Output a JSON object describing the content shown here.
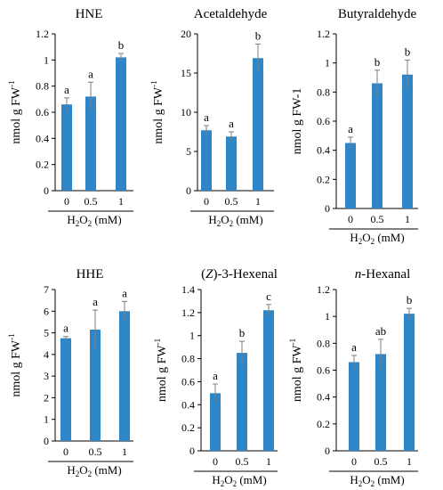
{
  "chart_data": [
    {
      "type": "bar",
      "title": "HNE",
      "ylabel": "nmol g FW",
      "ylabel_sup": "-1",
      "xlabel_parts": [
        "H",
        "2",
        "O",
        "2",
        " (mM)"
      ],
      "categories": [
        "0",
        "0.5",
        "1"
      ],
      "values": [
        0.66,
        0.72,
        1.02
      ],
      "errors": [
        0.05,
        0.11,
        0.03
      ],
      "letters": [
        "a",
        "a",
        "b"
      ],
      "ylim": [
        0,
        1.2
      ],
      "yticks": [
        "0",
        "0.2",
        "0.4",
        "0.6",
        "0.8",
        "1",
        "1.2"
      ]
    },
    {
      "type": "bar",
      "title": "Acetaldehyde",
      "ylabel": "nmol g FW",
      "ylabel_sup": "-1",
      "xlabel_parts": [
        "H",
        "2",
        "O",
        "2",
        " (mM)"
      ],
      "categories": [
        "0",
        "0.5",
        "1"
      ],
      "values": [
        7.7,
        6.9,
        16.9
      ],
      "errors": [
        0.6,
        0.6,
        1.8
      ],
      "letters": [
        "a",
        "a",
        "b"
      ],
      "ylim": [
        0,
        20
      ],
      "yticks": [
        "0",
        "5",
        "10",
        "15",
        "20"
      ]
    },
    {
      "type": "bar",
      "title": "Butyraldehyde",
      "ylabel": "nmol g FW-1",
      "ylabel_sup": "",
      "xlabel_parts": [
        "H",
        "2",
        "O",
        "2",
        " (mM)"
      ],
      "categories": [
        "0",
        "0.5",
        "1"
      ],
      "values": [
        0.45,
        0.86,
        0.92
      ],
      "errors": [
        0.04,
        0.09,
        0.1
      ],
      "letters": [
        "a",
        "b",
        "b"
      ],
      "ylim": [
        0,
        1.2
      ],
      "yticks": [
        "0",
        "0.2",
        "0.4",
        "0.6",
        "0.8",
        "1",
        "1.2"
      ]
    },
    {
      "type": "bar",
      "title": "HHE",
      "ylabel": "nmol g FW",
      "ylabel_sup": "-1",
      "xlabel_parts": [
        "H",
        "2",
        "O",
        "2",
        " (mM)"
      ],
      "categories": [
        "0",
        "0.5",
        "1"
      ],
      "values": [
        4.75,
        5.15,
        6.0
      ],
      "errors": [
        0.08,
        0.9,
        0.45
      ],
      "letters": [
        "a",
        "a",
        "a"
      ],
      "ylim": [
        0,
        7
      ],
      "yticks": [
        "0",
        "1",
        "2",
        "3",
        "4",
        "5",
        "6",
        "7"
      ]
    },
    {
      "type": "bar",
      "title": "(Z)-3-Hexenal",
      "title_parts": [
        {
          "t": "("
        },
        {
          "t": "Z",
          "i": true
        },
        {
          "t": ")-3-Hexenal"
        }
      ],
      "ylabel": "nmol g FW",
      "ylabel_sup": "-1",
      "xlabel_parts": [
        "H",
        "2",
        "O",
        "2",
        " (mM)"
      ],
      "categories": [
        "0",
        "0.5",
        "1"
      ],
      "values": [
        0.5,
        0.85,
        1.22
      ],
      "errors": [
        0.08,
        0.1,
        0.05
      ],
      "letters": [
        "a",
        "b",
        "c"
      ],
      "ylim": [
        0,
        1.4
      ],
      "yticks": [
        "0",
        "0.2",
        "0.4",
        "0.6",
        "0.8",
        "1",
        "1.2",
        "1.4"
      ]
    },
    {
      "type": "bar",
      "title": "n-Hexanal",
      "title_parts": [
        {
          "t": "n",
          "i": true
        },
        {
          "t": "-Hexanal"
        }
      ],
      "ylabel": "nmol g FW",
      "ylabel_sup": "-1",
      "xlabel_parts": [
        "H",
        "2",
        "O",
        "2",
        " (mM)"
      ],
      "categories": [
        "0",
        "0.5",
        "1"
      ],
      "values": [
        0.66,
        0.72,
        1.02
      ],
      "errors": [
        0.05,
        0.11,
        0.04
      ],
      "letters": [
        "a",
        "ab",
        "b"
      ],
      "ylim": [
        0,
        1.2
      ],
      "yticks": [
        "0",
        "0.2",
        "0.4",
        "0.6",
        "0.8",
        "1",
        "1.2"
      ]
    }
  ],
  "colors": {
    "bar": "#2e86c8",
    "error": "#7f7f7f",
    "axis": "#000000"
  }
}
